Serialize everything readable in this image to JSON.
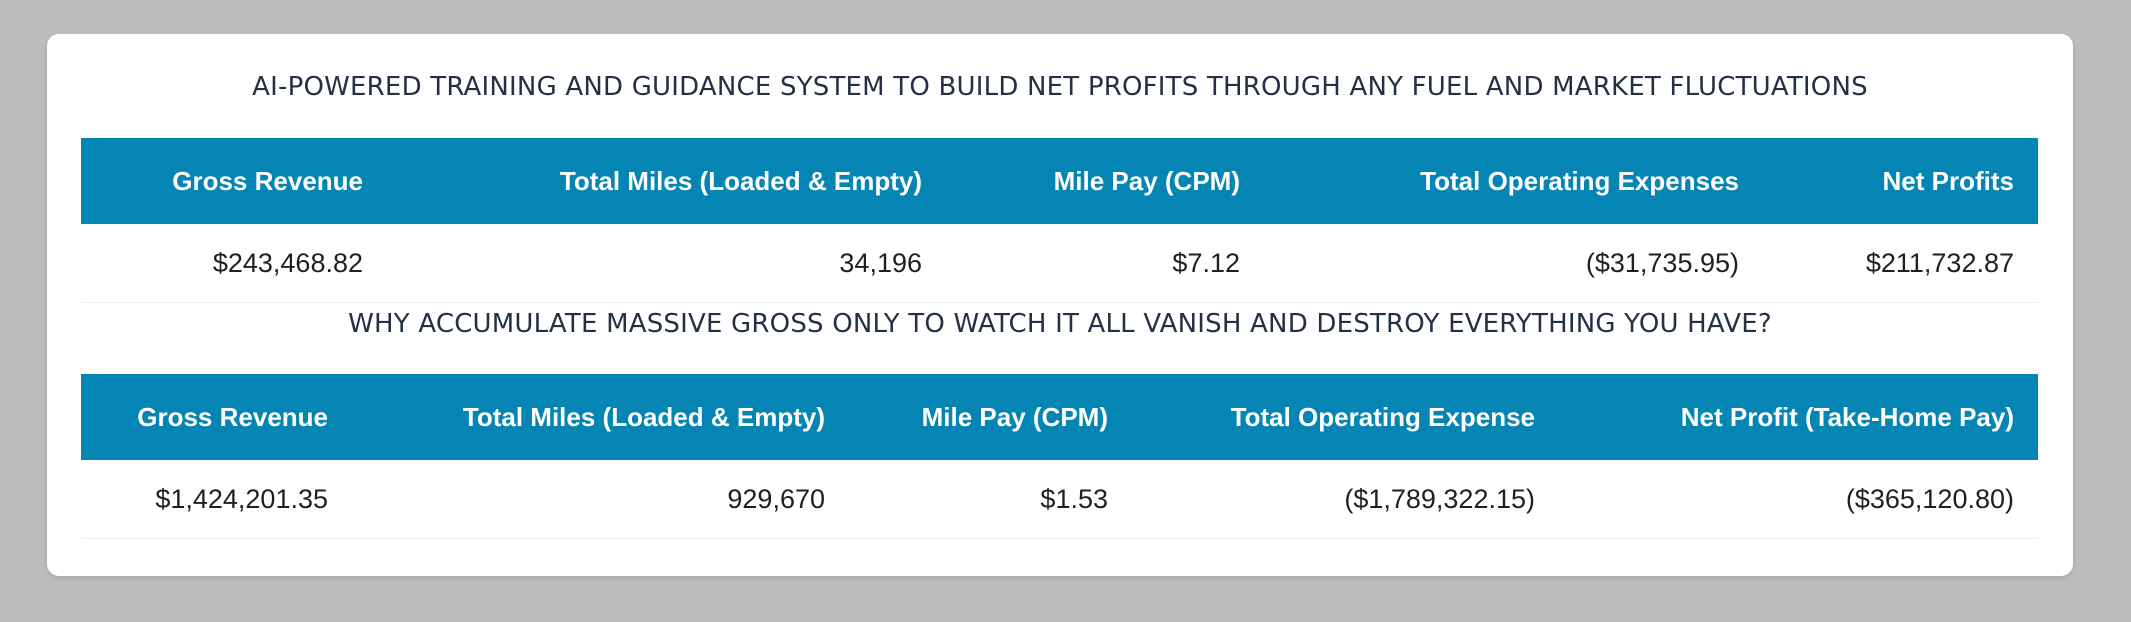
{
  "headline_1": "AI-POWERED TRAINING AND GUIDANCE SYSTEM TO BUILD NET PROFITS THROUGH ANY FUEL AND MARKET FLUCTUATIONS",
  "table_1": {
    "headers": [
      "Gross Revenue",
      "Total Miles (Loaded & Empty)",
      "Mile Pay (CPM)",
      "Total Operating Expenses",
      "Net Profits"
    ],
    "row": [
      "$243,468.82",
      "34,196",
      "$7.12",
      "($31,735.95)",
      "$211,732.87"
    ]
  },
  "headline_2": "WHY ACCUMULATE MASSIVE GROSS ONLY TO WATCH IT ALL VANISH AND DESTROY EVERYTHING YOU HAVE?",
  "table_2": {
    "headers": [
      "Gross Revenue",
      "Total Miles (Loaded & Empty)",
      "Mile Pay (CPM)",
      "Total Operating Expense",
      "Net Profit (Take-Home Pay)"
    ],
    "row": [
      "$1,424,201.35",
      "929,670",
      "$1.53",
      "($1,789,322.15)",
      "($365,120.80)"
    ]
  },
  "colors": {
    "header_bg": "#0485b3",
    "page_bg": "#bdbdbd",
    "card_bg": "#ffffff",
    "headline_text": "#243045"
  }
}
